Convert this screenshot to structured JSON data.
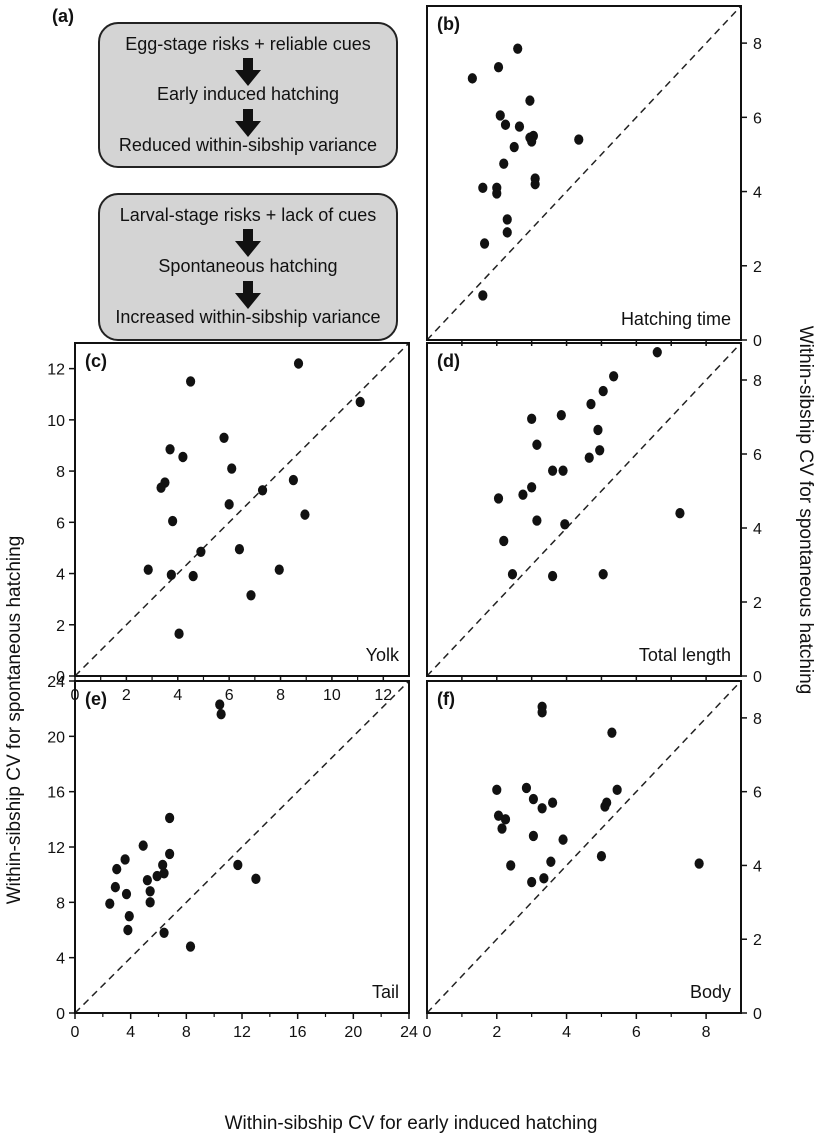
{
  "panel_a": {
    "label": "(a)",
    "box1": [
      "Egg-stage risks + reliable cues",
      "Early induced hatching",
      "Reduced within-sibship variance"
    ],
    "box2": [
      "Larval-stage risks + lack of cues",
      "Spontaneous hatching",
      "Increased within-sibship variance"
    ]
  },
  "axis_labels": {
    "x": "Within-sibship CV for early induced hatching",
    "y_left": "Within-sibship CV for spontaneous hatching",
    "y_right": "Within-sibship CV for spontaneous hatching"
  },
  "chart_data": [
    {
      "type": "scatter",
      "panel": "(b)",
      "title": "Hatching time",
      "xlim": [
        0,
        9
      ],
      "ylim": [
        0,
        9
      ],
      "yticks": [
        0,
        2,
        4,
        6,
        8
      ],
      "ytick_side": "right",
      "xticks": [],
      "minor_xticks": [
        1,
        2,
        3,
        4,
        5,
        6,
        7,
        8
      ],
      "diagonal": true,
      "points": [
        [
          1.3,
          7.05
        ],
        [
          2.05,
          7.35
        ],
        [
          2.6,
          7.85
        ],
        [
          2.1,
          6.05
        ],
        [
          2.25,
          5.8
        ],
        [
          2.65,
          5.75
        ],
        [
          2.95,
          6.45
        ],
        [
          2.95,
          5.45
        ],
        [
          3.05,
          5.5
        ],
        [
          3.0,
          5.35
        ],
        [
          2.5,
          5.2
        ],
        [
          4.35,
          5.4
        ],
        [
          2.2,
          4.75
        ],
        [
          3.1,
          4.35
        ],
        [
          3.1,
          4.2
        ],
        [
          1.6,
          4.1
        ],
        [
          2.0,
          4.1
        ],
        [
          2.0,
          3.95
        ],
        [
          1.65,
          2.6
        ],
        [
          2.3,
          2.9
        ],
        [
          2.3,
          3.25
        ],
        [
          1.6,
          1.2
        ]
      ]
    },
    {
      "type": "scatter",
      "panel": "(c)",
      "title": "Yolk",
      "xlim": [
        0,
        13
      ],
      "ylim": [
        0,
        13
      ],
      "yticks": [
        0,
        2,
        4,
        6,
        8,
        10,
        12
      ],
      "ytick_side": "left",
      "xticks": [
        0,
        2,
        4,
        6,
        8,
        10,
        12
      ],
      "diagonal": true,
      "points": [
        [
          4.5,
          11.5
        ],
        [
          8.7,
          12.2
        ],
        [
          11.1,
          10.7
        ],
        [
          5.8,
          9.3
        ],
        [
          3.7,
          8.85
        ],
        [
          4.2,
          8.55
        ],
        [
          6.1,
          8.1
        ],
        [
          3.5,
          7.55
        ],
        [
          3.35,
          7.35
        ],
        [
          7.3,
          7.25
        ],
        [
          6.0,
          6.7
        ],
        [
          8.5,
          7.65
        ],
        [
          8.95,
          6.3
        ],
        [
          3.8,
          6.05
        ],
        [
          4.9,
          4.85
        ],
        [
          6.4,
          4.95
        ],
        [
          2.85,
          4.15
        ],
        [
          3.75,
          3.95
        ],
        [
          4.6,
          3.9
        ],
        [
          7.95,
          4.15
        ],
        [
          6.85,
          3.15
        ],
        [
          4.05,
          1.65
        ]
      ]
    },
    {
      "type": "scatter",
      "panel": "(d)",
      "title": "Total length",
      "xlim": [
        0,
        9
      ],
      "ylim": [
        0,
        9
      ],
      "yticks": [
        0,
        2,
        4,
        6,
        8
      ],
      "ytick_side": "right",
      "xticks": [],
      "minor_xticks": [
        1,
        2,
        3,
        4,
        5,
        6,
        7,
        8
      ],
      "diagonal": true,
      "points": [
        [
          6.6,
          8.75
        ],
        [
          5.35,
          8.1
        ],
        [
          5.05,
          7.7
        ],
        [
          4.7,
          7.35
        ],
        [
          3.85,
          7.05
        ],
        [
          3.0,
          6.95
        ],
        [
          3.15,
          6.25
        ],
        [
          4.65,
          5.9
        ],
        [
          4.9,
          6.65
        ],
        [
          4.95,
          6.1
        ],
        [
          3.6,
          5.55
        ],
        [
          3.9,
          5.55
        ],
        [
          2.75,
          4.9
        ],
        [
          3.0,
          5.1
        ],
        [
          2.05,
          4.8
        ],
        [
          3.15,
          4.2
        ],
        [
          3.95,
          4.1
        ],
        [
          7.25,
          4.4
        ],
        [
          2.2,
          3.65
        ],
        [
          2.45,
          2.75
        ],
        [
          3.6,
          2.7
        ],
        [
          5.05,
          2.75
        ]
      ]
    },
    {
      "type": "scatter",
      "panel": "(e)",
      "title": "Tail",
      "xlim": [
        0,
        24
      ],
      "ylim": [
        0,
        24
      ],
      "yticks": [
        0,
        4,
        8,
        12,
        16,
        20,
        24
      ],
      "ytick_side": "left",
      "xticks": [
        0,
        4,
        8,
        12,
        16,
        20,
        24
      ],
      "diagonal": true,
      "points": [
        [
          10.4,
          22.3
        ],
        [
          10.5,
          21.6
        ],
        [
          6.8,
          14.1
        ],
        [
          4.9,
          12.1
        ],
        [
          6.8,
          11.5
        ],
        [
          3.6,
          11.1
        ],
        [
          3.0,
          10.4
        ],
        [
          6.3,
          10.7
        ],
        [
          11.7,
          10.7
        ],
        [
          13.0,
          9.7
        ],
        [
          6.4,
          10.1
        ],
        [
          5.9,
          9.9
        ],
        [
          5.2,
          9.6
        ],
        [
          2.9,
          9.1
        ],
        [
          3.7,
          8.6
        ],
        [
          5.4,
          8.8
        ],
        [
          5.4,
          8.0
        ],
        [
          2.5,
          7.9
        ],
        [
          3.9,
          7.0
        ],
        [
          3.8,
          6.0
        ],
        [
          6.4,
          5.8
        ],
        [
          8.3,
          4.8
        ]
      ]
    },
    {
      "type": "scatter",
      "panel": "(f)",
      "title": "Body",
      "xlim": [
        0,
        9
      ],
      "ylim": [
        0,
        9
      ],
      "yticks": [
        0,
        2,
        4,
        6,
        8
      ],
      "ytick_side": "right",
      "xticks": [
        0,
        2,
        4,
        6,
        8
      ],
      "diagonal": true,
      "points": [
        [
          3.3,
          8.3
        ],
        [
          3.3,
          8.15
        ],
        [
          5.3,
          7.6
        ],
        [
          2.0,
          6.05
        ],
        [
          2.85,
          6.1
        ],
        [
          5.45,
          6.05
        ],
        [
          3.05,
          5.8
        ],
        [
          3.6,
          5.7
        ],
        [
          3.3,
          5.55
        ],
        [
          5.15,
          5.7
        ],
        [
          5.1,
          5.6
        ],
        [
          2.05,
          5.35
        ],
        [
          2.25,
          5.25
        ],
        [
          2.15,
          5.0
        ],
        [
          3.05,
          4.8
        ],
        [
          3.9,
          4.7
        ],
        [
          5.0,
          4.25
        ],
        [
          2.4,
          4.0
        ],
        [
          3.55,
          4.1
        ],
        [
          7.8,
          4.05
        ],
        [
          3.35,
          3.65
        ],
        [
          3.0,
          3.55
        ]
      ]
    }
  ]
}
